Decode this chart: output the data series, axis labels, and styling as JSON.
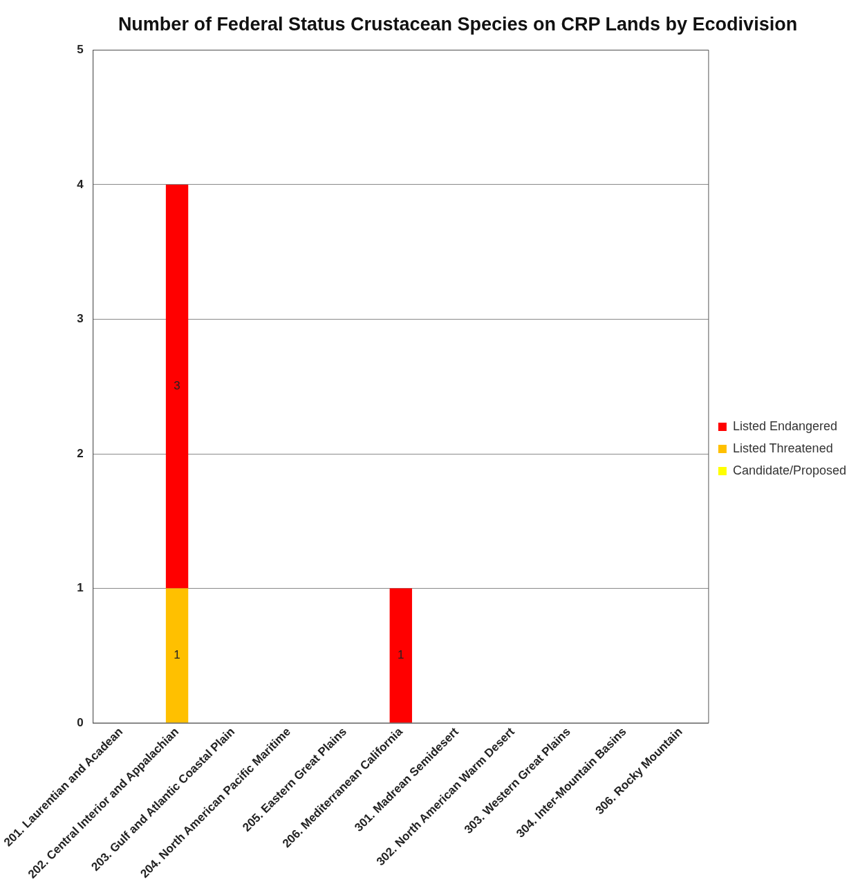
{
  "chart_data": {
    "type": "bar",
    "title": "Number of Federal Status Crustacean Species on CRP Lands by Ecodivision",
    "categories": [
      "201. Laurentian and Acadean",
      "202. Central Interior and Appalachian",
      "203. Gulf and Atlantic Coastal Plain",
      "204. North American Pacific Maritime",
      "205. Eastern Great Plains",
      "206. Mediterranean California",
      "301. Madrean Semidesert",
      "302. North American Warm Desert",
      "303. Western Great Plains",
      "304. Inter-Mountain Basins",
      "306. Rocky Mountain"
    ],
    "series": [
      {
        "name": "Candidate/Proposed",
        "color": "#ffff00",
        "values": [
          null,
          null,
          null,
          null,
          null,
          null,
          null,
          null,
          null,
          null,
          null
        ]
      },
      {
        "name": "Listed Threatened",
        "color": "#ffc000",
        "values": [
          null,
          1,
          null,
          null,
          null,
          null,
          null,
          null,
          null,
          null,
          null
        ]
      },
      {
        "name": "Listed Endangered",
        "color": "#ff0000",
        "values": [
          null,
          3,
          null,
          null,
          null,
          1,
          null,
          null,
          null,
          null,
          null
        ]
      }
    ],
    "stacked": true,
    "ylim": [
      0,
      5
    ],
    "yticks": [
      0,
      1,
      2,
      3,
      4,
      5
    ],
    "grid": "y",
    "legend": "right",
    "data_labels": true
  }
}
